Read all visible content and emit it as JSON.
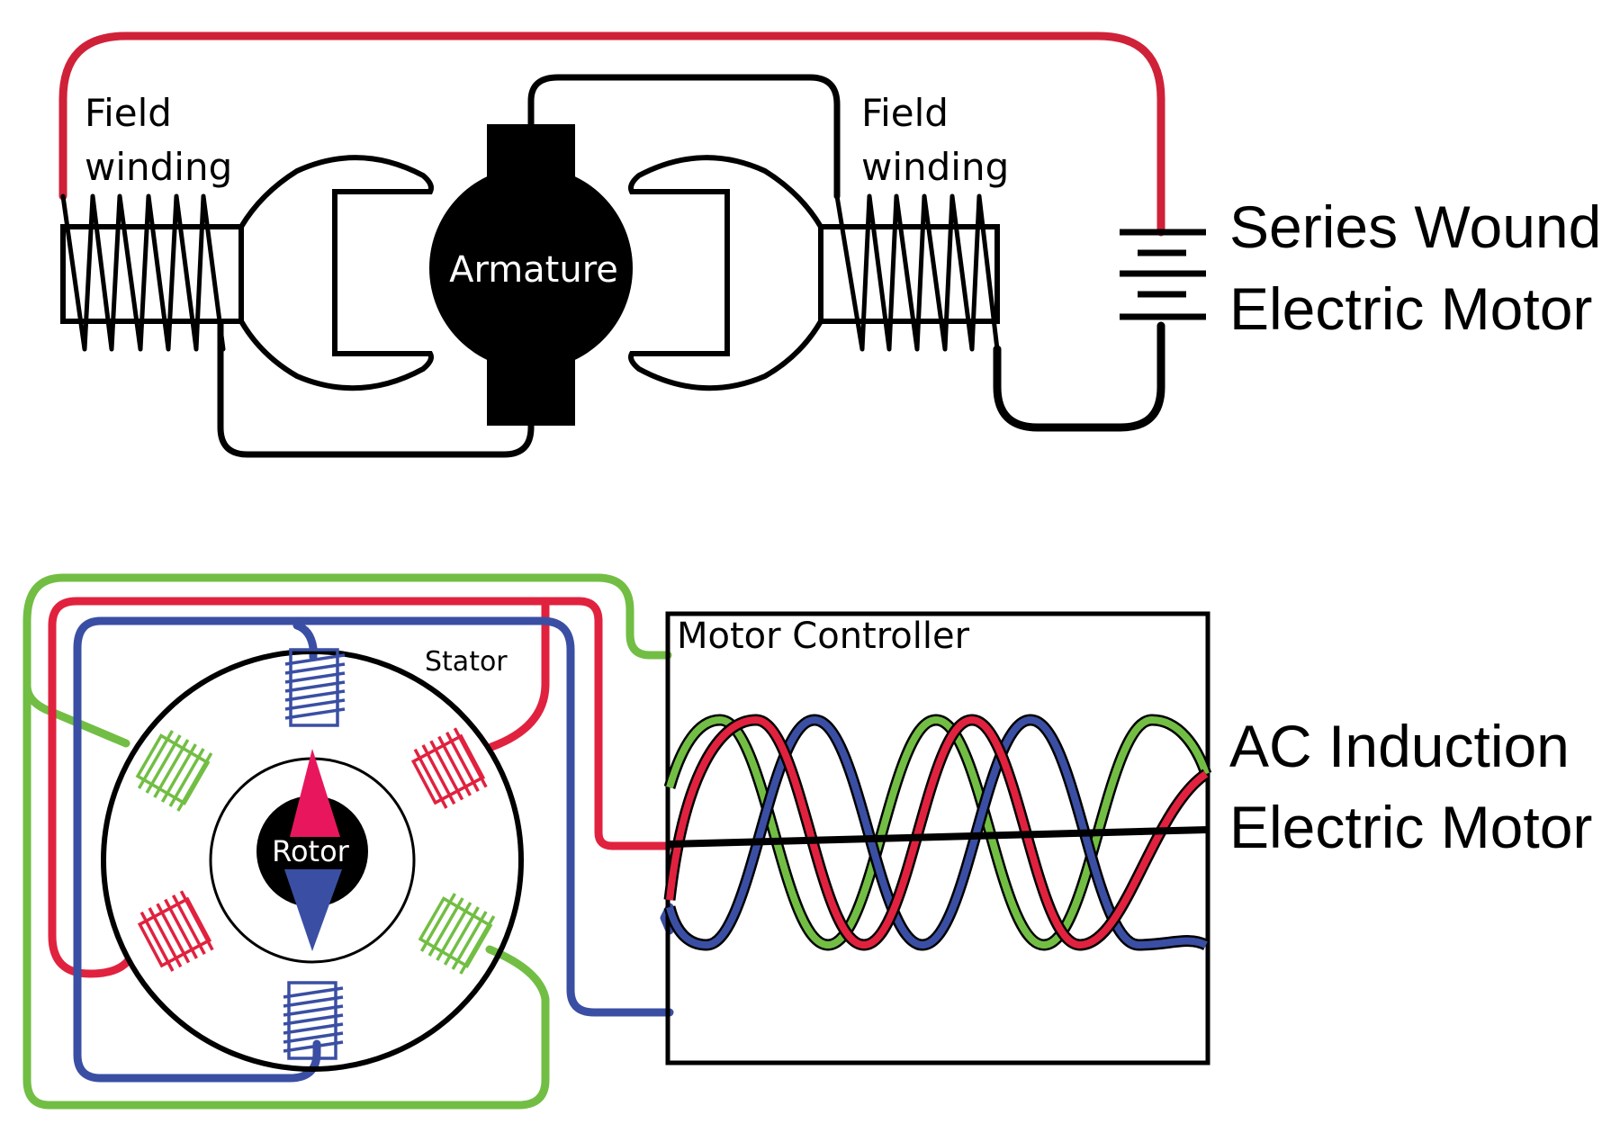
{
  "series_motor": {
    "title_line1": "Series Wound",
    "title_line2": "Electric Motor",
    "left_field_line1": "Field",
    "left_field_line2": "winding",
    "right_field_line1": "Field",
    "right_field_line2": "winding",
    "armature_label": "Armature"
  },
  "induction_motor": {
    "title_line1": "AC Induction",
    "title_line2": "Electric Motor",
    "stator_label": "Stator",
    "rotor_label": "Rotor",
    "controller_label": "Motor Controller"
  },
  "colors": {
    "phase_red": "#e0223f",
    "phase_green": "#72be44",
    "phase_blue": "#3a4fa3",
    "wire_red": "#cf2239",
    "wire_black": "#000000",
    "rotor_arrow_pink": "#e8175d",
    "rotor_arrow_blue": "#3a4fa3"
  }
}
